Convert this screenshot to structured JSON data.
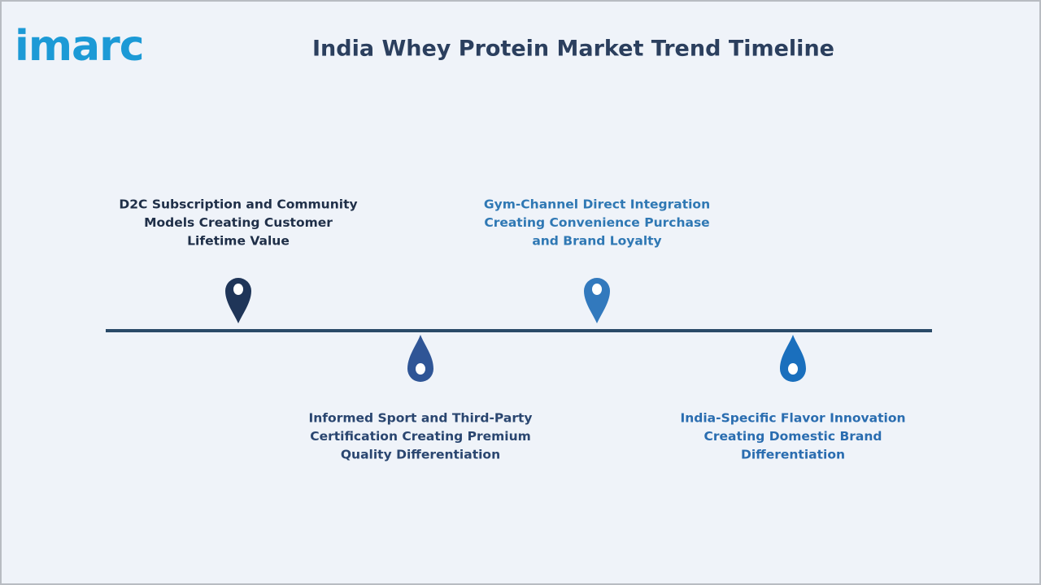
{
  "logo": "imarc",
  "title": "India Whey Protein Market Trend Timeline",
  "items": [
    {
      "lines": [
        "D2C Subscription and Community",
        "Models Creating Customer",
        "Lifetime Value"
      ]
    },
    {
      "lines": [
        "Informed Sport and Third-Party",
        "Certification Creating Premium",
        "Quality Differentiation"
      ]
    },
    {
      "lines": [
        "Gym-Channel Direct Integration",
        "Creating Convenience Purchase",
        "and Brand Loyalty"
      ]
    },
    {
      "lines": [
        "India-Specific Flavor Innovation",
        "Creating Domestic Brand",
        "Differentiation"
      ]
    }
  ]
}
